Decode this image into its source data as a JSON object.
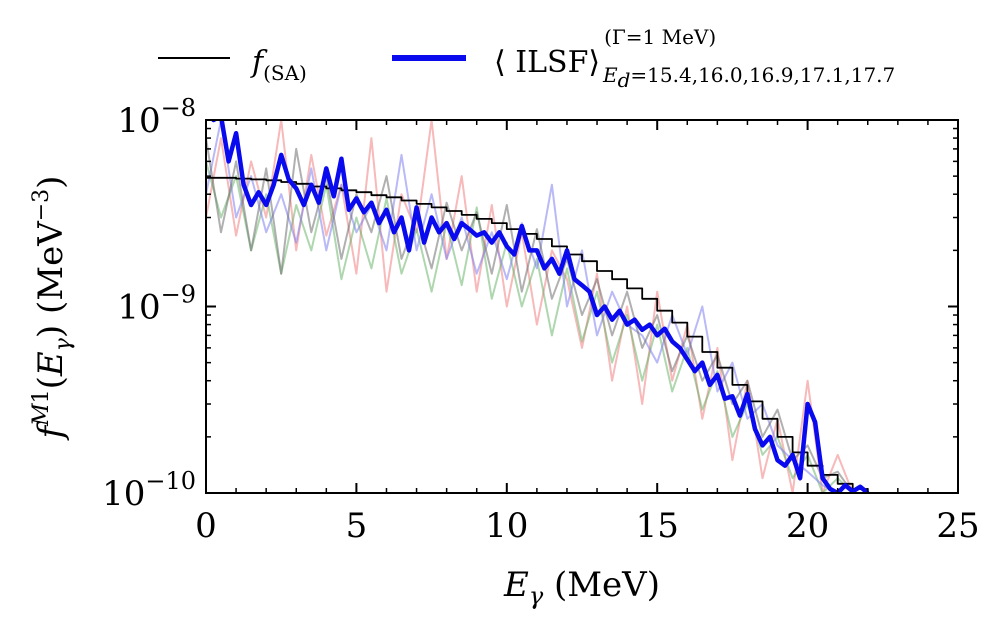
{
  "chart_data": {
    "type": "line",
    "xlabel": "E_γ (MeV)",
    "ylabel": "f^{M1}(E_γ) (MeV^{-3})",
    "xlim": [
      0,
      25
    ],
    "ylim": [
      1e-10,
      1e-08
    ],
    "yscale": "log",
    "x_ticks": [
      "0",
      "5",
      "10",
      "15",
      "20",
      "25"
    ],
    "y_ticks": [
      {
        "value": 1e-10,
        "label": "10",
        "exp": "−10"
      },
      {
        "value": 1e-09,
        "label": "10",
        "exp": "−9"
      },
      {
        "value": 1e-08,
        "label": "10",
        "exp": "−8"
      }
    ],
    "grid": false,
    "legend": {
      "placement": "top",
      "entries": [
        {
          "main": "f",
          "sub": "(SA)",
          "color": "#000000"
        },
        {
          "main": "⟨ ILSF⟩",
          "sup": "(Γ=1 MeV)",
          "sub": "E",
          "subsub": "d",
          "subtail": "=15.4,16.0,16.9,17.1,17.7",
          "color": "#0a0aee"
        }
      ]
    },
    "series": [
      {
        "name": "f(SA)",
        "style": "step",
        "color": "#000000",
        "x": [
          0,
          0.5,
          1,
          1.5,
          2,
          2.5,
          3,
          3.5,
          4,
          4.5,
          5,
          5.5,
          6,
          6.5,
          7,
          7.5,
          8,
          8.5,
          9,
          9.5,
          10,
          10.5,
          11,
          11.5,
          12,
          12.5,
          13,
          13.5,
          14,
          14.5,
          15,
          15.5,
          16,
          16.5,
          17,
          17.5,
          18,
          18.5,
          19,
          19.5,
          20,
          20.5,
          21,
          21.5,
          22
        ],
        "y": [
          4.9e-09,
          4.9e-09,
          4.85e-09,
          4.8e-09,
          4.75e-09,
          4.65e-09,
          4.55e-09,
          4.4e-09,
          4.3e-09,
          4.2e-09,
          4.1e-09,
          3.95e-09,
          3.85e-09,
          3.7e-09,
          3.55e-09,
          3.4e-09,
          3.25e-09,
          3.1e-09,
          2.95e-09,
          2.8e-09,
          2.6e-09,
          2.45e-09,
          2.3e-09,
          2.1e-09,
          1.9e-09,
          1.75e-09,
          1.55e-09,
          1.4e-09,
          1.25e-09,
          1.1e-09,
          9.5e-10,
          8.2e-10,
          6.9e-10,
          5.7e-10,
          4.7e-10,
          3.8e-10,
          3.1e-10,
          2.5e-10,
          2e-10,
          1.65e-10,
          1.4e-10,
          1.25e-10,
          1.12e-10,
          1.05e-10,
          1e-10
        ]
      },
      {
        "name": "⟨ILSF⟩ average",
        "style": "line",
        "color": "#0a0aee",
        "x": [
          0,
          0.25,
          0.5,
          0.75,
          1,
          1.25,
          1.5,
          1.75,
          2,
          2.25,
          2.5,
          2.75,
          3,
          3.25,
          3.5,
          3.75,
          4,
          4.25,
          4.5,
          4.75,
          5,
          5.25,
          5.5,
          5.75,
          6,
          6.25,
          6.5,
          6.75,
          7,
          7.25,
          7.5,
          7.75,
          8,
          8.25,
          8.5,
          8.75,
          9,
          9.25,
          9.5,
          9.75,
          10,
          10.25,
          10.5,
          10.75,
          11,
          11.25,
          11.5,
          11.75,
          12,
          12.25,
          12.5,
          12.75,
          13,
          13.25,
          13.5,
          13.75,
          14,
          14.25,
          14.5,
          14.75,
          15,
          15.25,
          15.5,
          15.75,
          16,
          16.25,
          16.5,
          16.75,
          17,
          17.25,
          17.5,
          17.75,
          18,
          18.25,
          18.5,
          18.75,
          19,
          19.25,
          19.5,
          19.75,
          20,
          20.25,
          20.5,
          20.75,
          21,
          21.25,
          21.5,
          21.75,
          22
        ],
        "y": [
          1.2e-08,
          1e-08,
          1.05e-08,
          6e-09,
          8.5e-09,
          4.5e-09,
          3.5e-09,
          4.1e-09,
          3.5e-09,
          4.5e-09,
          6.5e-09,
          4.8e-09,
          4.3e-09,
          3.5e-09,
          4.5e-09,
          3.6e-09,
          5.5e-09,
          3.9e-09,
          6.2e-09,
          3.3e-09,
          3.8e-09,
          3.2e-09,
          3.6e-09,
          2.8e-09,
          3.3e-09,
          2.5e-09,
          3e-09,
          2e-09,
          3.4e-09,
          2.2e-09,
          3e-09,
          2.5e-09,
          2.8e-09,
          2.3e-09,
          2.8e-09,
          2.6e-09,
          2.4e-09,
          2.5e-09,
          2.2e-09,
          2.5e-09,
          2.1e-09,
          1.9e-09,
          2.7e-09,
          2e-09,
          2e-09,
          1.6e-09,
          1.8e-09,
          1.5e-09,
          2e-09,
          1.4e-09,
          1.3e-09,
          1.2e-09,
          9e-10,
          1e-09,
          8.5e-10,
          9.5e-10,
          8e-10,
          8.5e-10,
          7.5e-10,
          8e-10,
          7e-10,
          7.6e-10,
          6.5e-10,
          6e-10,
          5.2e-10,
          4.5e-10,
          5e-10,
          3.8e-10,
          4.3e-10,
          3.2e-10,
          3.3e-10,
          2.6e-10,
          3.4e-10,
          2.2e-10,
          1.8e-10,
          2e-10,
          1.5e-10,
          1.4e-10,
          1.6e-10,
          1.2e-10,
          3e-10,
          2.4e-10,
          1.2e-10,
          1.05e-10,
          1e-10,
          1.1e-10,
          1.02e-10,
          1.08e-10,
          1e-10
        ]
      },
      {
        "name": "",
        "style": "line",
        "color": "#f08080",
        "opacity": 0.55,
        "x": [
          0,
          0.5,
          1,
          1.5,
          2,
          2.5,
          3,
          3.5,
          4,
          4.5,
          5,
          5.5,
          6,
          6.5,
          7,
          7.5,
          8,
          8.5,
          9,
          9.5,
          10,
          10.5,
          11,
          11.5,
          12,
          12.5,
          13,
          13.5,
          14,
          14.5,
          15,
          15.5,
          16,
          16.5,
          17,
          17.5,
          18,
          18.5,
          19,
          19.5,
          20,
          20.5,
          21,
          21.5,
          22
        ],
        "y": [
          3e-09,
          8e-09,
          2.4e-09,
          6e-09,
          3e-09,
          1e-08,
          2e-09,
          6.5e-09,
          2.4e-09,
          4.5e-09,
          1.5e-09,
          8e-09,
          1.2e-09,
          4e-09,
          2.5e-09,
          1e-08,
          1.8e-09,
          5e-09,
          1.2e-09,
          3.5e-09,
          1e-09,
          2.5e-09,
          8e-10,
          2e-09,
          1.4e-09,
          6e-10,
          1.5e-09,
          4e-10,
          1e-09,
          3e-10,
          1.2e-09,
          4e-10,
          8e-10,
          2.5e-10,
          6e-10,
          1.5e-10,
          4e-10,
          1.2e-10,
          2.5e-10,
          1e-10,
          4e-10,
          1e-10,
          1.6e-10,
          1e-10,
          1e-10
        ]
      },
      {
        "name": "",
        "style": "line",
        "color": "#60b060",
        "opacity": 0.5,
        "x": [
          0,
          0.5,
          1,
          1.5,
          2,
          2.5,
          3,
          3.5,
          4,
          4.5,
          5,
          5.5,
          6,
          6.5,
          7,
          7.5,
          8,
          8.5,
          9,
          9.5,
          10,
          10.5,
          11,
          11.5,
          12,
          12.5,
          13,
          13.5,
          14,
          14.5,
          15,
          15.5,
          16,
          16.5,
          17,
          17.5,
          18,
          18.5,
          19,
          19.5,
          20,
          20.5,
          21,
          21.5
        ],
        "y": [
          6e-09,
          3e-09,
          5e-09,
          2e-09,
          4e-09,
          1.5e-09,
          3.5e-09,
          2e-09,
          4.5e-09,
          1.4e-09,
          3e-09,
          1.6e-09,
          3.8e-09,
          1.5e-09,
          2.6e-09,
          1.2e-09,
          2.8e-09,
          1.3e-09,
          3.4e-09,
          1.1e-09,
          2.2e-09,
          1e-09,
          1.8e-09,
          7e-10,
          1.6e-09,
          6.5e-10,
          1.2e-09,
          5e-10,
          9e-10,
          4e-10,
          8e-10,
          3.5e-10,
          6e-10,
          2.8e-10,
          4.5e-10,
          2e-10,
          3e-10,
          1.6e-10,
          2e-10,
          1.2e-10,
          1.6e-10,
          1e-10,
          1.2e-10,
          1e-10
        ]
      },
      {
        "name": "",
        "style": "line",
        "color": "#8080f0",
        "opacity": 0.55,
        "x": [
          0,
          0.5,
          1,
          1.5,
          2,
          2.5,
          3,
          3.5,
          4,
          4.5,
          5,
          5.5,
          6,
          6.5,
          7,
          7.5,
          8,
          8.5,
          9,
          9.5,
          10,
          10.5,
          11,
          11.5,
          12,
          12.5,
          13,
          13.5,
          14,
          14.5,
          15,
          15.5,
          16,
          16.5,
          17,
          17.5,
          18,
          18.5,
          19,
          19.5,
          20,
          20.5,
          21
        ],
        "y": [
          4e-09,
          1e-08,
          3e-09,
          5e-09,
          2.5e-09,
          4e-09,
          2.2e-09,
          5.5e-09,
          2e-09,
          4.5e-09,
          2.5e-09,
          3.5e-09,
          2e-09,
          6.5e-09,
          2e-09,
          4e-09,
          1.8e-09,
          3e-09,
          1.5e-09,
          2.5e-09,
          1.4e-09,
          2.8e-09,
          1.6e-09,
          4.5e-09,
          1e-09,
          2e-09,
          7e-10,
          1.2e-09,
          8e-10,
          7e-10,
          5e-10,
          9e-10,
          5.5e-10,
          1e-09,
          3.5e-10,
          5e-10,
          2.5e-10,
          3e-10,
          1.8e-10,
          1.5e-10,
          1.3e-10,
          1.1e-10,
          1e-10
        ]
      },
      {
        "name": "",
        "style": "line",
        "color": "#707070",
        "opacity": 0.55,
        "x": [
          0,
          0.5,
          1,
          1.5,
          2,
          2.5,
          3,
          3.5,
          4,
          4.5,
          5,
          5.5,
          6,
          6.5,
          7,
          7.5,
          8,
          8.5,
          9,
          9.5,
          10,
          10.5,
          11,
          11.5,
          12,
          12.5,
          13,
          13.5,
          14,
          14.5,
          15,
          15.5,
          16,
          16.5,
          17,
          17.5,
          18,
          18.5,
          19,
          19.5,
          20,
          20.5,
          21,
          21.5
        ],
        "y": [
          8e-09,
          2.5e-09,
          6e-09,
          2e-09,
          5.5e-09,
          1.5e-09,
          7e-09,
          2.5e-09,
          5e-09,
          1.8e-09,
          4e-09,
          2.5e-09,
          5e-09,
          1.8e-09,
          3e-09,
          1.6e-09,
          3.6e-09,
          2e-09,
          3.2e-09,
          1.5e-09,
          3.5e-09,
          1.2e-09,
          2.6e-09,
          1.1e-09,
          1.8e-09,
          9e-10,
          1.4e-09,
          7e-10,
          1.2e-09,
          6e-10,
          9e-10,
          4.5e-10,
          7e-10,
          4e-10,
          5.5e-10,
          3e-10,
          4e-10,
          2e-10,
          2.8e-10,
          1.5e-10,
          1.8e-10,
          1.2e-10,
          1.3e-10,
          1e-10
        ]
      }
    ]
  }
}
